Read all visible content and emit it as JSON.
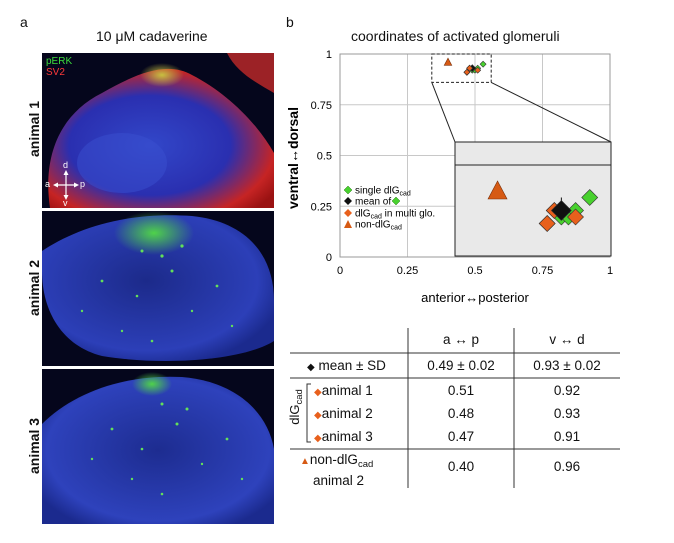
{
  "panel_a": {
    "letter": "a",
    "title": "10 μM cadaverine",
    "legend": {
      "perk": "pERK",
      "sv2": "SV2"
    },
    "compass": {
      "d": "d",
      "v": "v",
      "a": "a",
      "p": "p"
    },
    "rows": [
      "animal 1",
      "animal 2",
      "animal 3"
    ],
    "colors": {
      "perk": "#3cdc3c",
      "sv2": "#e11e1e",
      "dapi": "#2a3fbf"
    }
  },
  "panel_b": {
    "letter": "b",
    "title": "coordinates of activated glomeruli",
    "legend": {
      "single_prefix": "single dlG",
      "single_sub": "cad",
      "mean_prefix": "mean of",
      "multi_prefix": "dlG",
      "multi_sub": "cad",
      "multi_suffix": " in multi glo.",
      "non_prefix": "non-dlG",
      "non_sub": "cad"
    }
  },
  "chart_data": {
    "type": "scatter",
    "title": "coordinates of activated glomeruli",
    "xlabel": "anterior↔posterior",
    "ylabel": "ventral↔dorsal",
    "xlim": [
      0,
      1
    ],
    "ylim": [
      0,
      1
    ],
    "xticks": [
      "0",
      "0.25",
      "0.5",
      "0.75",
      "1"
    ],
    "yticks": [
      "0",
      "0.25",
      "0.5",
      "0.75",
      "1"
    ],
    "grid": true,
    "legend_position": "left, inside plot area",
    "inset": "magnified view of dashed region",
    "colors": {
      "single": "#48d12e",
      "mean": "#111111",
      "multi": "#e8601c",
      "non": "#d65a14"
    },
    "series": [
      {
        "name": "single dlGcad",
        "marker": "diamond",
        "x": [
          0.47,
          0.48,
          0.49,
          0.5,
          0.51,
          0.53
        ],
        "y": [
          0.91,
          0.93,
          0.92,
          0.92,
          0.93,
          0.95
        ]
      },
      {
        "name": "mean of single dlGcad",
        "marker": "diamond",
        "x": [
          0.49
        ],
        "y": [
          0.93
        ],
        "x_sd": 0.02,
        "y_sd": 0.02
      },
      {
        "name": "dlGcad in multi glo.",
        "marker": "diamond",
        "x": [
          0.48,
          0.51,
          0.47
        ],
        "y": [
          0.93,
          0.92,
          0.91
        ]
      },
      {
        "name": "non-dlGcad",
        "marker": "triangle",
        "x": [
          0.4
        ],
        "y": [
          0.96
        ]
      }
    ]
  },
  "table": {
    "headers": [
      "a ↔ p",
      "v ↔ d"
    ],
    "mean_row": {
      "label": "mean ± SD",
      "ap": "0.49 ± 0.02",
      "vd": "0.93 ± 0.02"
    },
    "group_label_prefix": "dlG",
    "group_label_sub": "cad",
    "animals": [
      {
        "label": "animal 1",
        "ap": "0.51",
        "vd": "0.92"
      },
      {
        "label": "animal 2",
        "ap": "0.48",
        "vd": "0.93"
      },
      {
        "label": "animal 3",
        "ap": "0.47",
        "vd": "0.91"
      }
    ],
    "non_row": {
      "label_prefix": "non-dlG",
      "label_sub": "cad",
      "label_line2": "animal 2",
      "ap": "0.40",
      "vd": "0.96"
    }
  }
}
